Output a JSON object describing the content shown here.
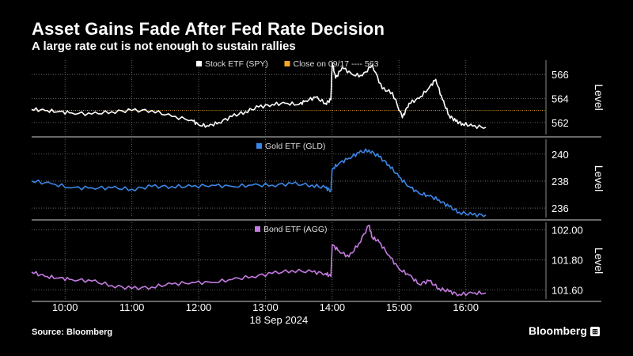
{
  "header": {
    "title": "Asset Gains Fade After Fed Rate Decision",
    "subtitle": "A large rate cut is not enough to sustain rallies"
  },
  "footer": {
    "source": "Source: Bloomberg",
    "brand": "Bloomberg",
    "brand_icon": "terminal-icon"
  },
  "colors": {
    "spy": "#ffffff",
    "close_line": "#f5a623",
    "gld": "#3a86e8",
    "agg": "#c47ae0",
    "grid": "#7a7a7a"
  },
  "chart_data": [
    {
      "type": "line",
      "panel": "spy",
      "legend": [
        "Stock ETF (SPY)",
        "Close on 09/17 ---- 563"
      ],
      "ylabel": "Level",
      "ylim": [
        561,
        567.2
      ],
      "yticks": [
        "566",
        "564",
        "562"
      ],
      "ytick_values": [
        566,
        564,
        562
      ],
      "reference_line": 563,
      "series": [
        {
          "name": "Stock ETF (SPY)",
          "x": [
            9.5,
            9.7,
            9.9,
            10.1,
            10.4,
            10.7,
            11.0,
            11.3,
            11.6,
            11.9,
            12.0,
            12.15,
            12.3,
            12.5,
            12.7,
            12.9,
            13.1,
            13.3,
            13.5,
            13.6,
            13.75,
            13.9,
            13.98,
            14.0,
            14.05,
            14.15,
            14.3,
            14.45,
            14.6,
            14.75,
            14.9,
            15.05,
            15.15,
            15.3,
            15.45,
            15.55,
            15.65,
            15.75,
            15.85,
            15.95,
            16.1,
            16.3
          ],
          "values": [
            563.1,
            563.0,
            562.9,
            562.8,
            562.7,
            562.9,
            563.0,
            563.0,
            562.5,
            562.2,
            561.8,
            561.7,
            562.0,
            562.5,
            562.9,
            563.3,
            563.5,
            563.6,
            563.5,
            563.8,
            564.1,
            563.6,
            563.9,
            567.0,
            565.7,
            566.6,
            566.0,
            565.9,
            566.8,
            564.8,
            564.5,
            562.4,
            563.6,
            564.0,
            564.9,
            565.6,
            563.9,
            562.6,
            562.1,
            561.9,
            561.7,
            561.6
          ]
        }
      ]
    },
    {
      "type": "line",
      "panel": "gld",
      "legend": [
        "Gold ETF (GLD)"
      ],
      "ylabel": "Level",
      "ylim": [
        235.3,
        241.1
      ],
      "yticks": [
        "240",
        "238",
        "236"
      ],
      "ytick_values": [
        240,
        238,
        236
      ],
      "series": [
        {
          "name": "Gold ETF (GLD)",
          "x": [
            9.5,
            9.8,
            10.1,
            10.4,
            10.7,
            11.0,
            11.3,
            11.6,
            11.9,
            12.2,
            12.5,
            12.8,
            13.1,
            13.4,
            13.7,
            13.9,
            13.98,
            14.0,
            14.1,
            14.25,
            14.4,
            14.55,
            14.7,
            14.85,
            15.0,
            15.15,
            15.3,
            15.45,
            15.6,
            15.75,
            15.9,
            16.1,
            16.3
          ],
          "values": [
            238.0,
            237.8,
            237.5,
            237.5,
            237.5,
            237.4,
            237.6,
            237.6,
            237.6,
            237.7,
            237.6,
            237.7,
            237.7,
            237.8,
            237.7,
            237.5,
            237.3,
            238.9,
            239.3,
            239.7,
            240.1,
            240.3,
            239.8,
            239.2,
            238.3,
            237.6,
            237.1,
            236.9,
            236.6,
            236.1,
            235.7,
            235.5,
            235.5
          ]
        }
      ]
    },
    {
      "type": "line",
      "panel": "agg",
      "legend": [
        "Bond ETF (AGG)"
      ],
      "ylabel": "Level",
      "ylim": [
        101.54,
        102.05
      ],
      "yticks": [
        "102.00",
        "101.80",
        "101.60"
      ],
      "ytick_values": [
        102.0,
        101.8,
        101.6
      ],
      "series": [
        {
          "name": "Bond ETF (AGG)",
          "x": [
            9.5,
            9.7,
            9.9,
            10.1,
            10.4,
            10.7,
            11.0,
            11.3,
            11.6,
            11.9,
            12.2,
            12.5,
            12.8,
            13.1,
            13.4,
            13.7,
            13.9,
            13.98,
            14.0,
            14.1,
            14.25,
            14.4,
            14.55,
            14.6,
            14.7,
            14.85,
            15.0,
            15.15,
            15.3,
            15.45,
            15.6,
            15.75,
            15.9,
            16.1,
            16.3
          ],
          "values": [
            101.72,
            101.69,
            101.68,
            101.67,
            101.66,
            101.63,
            101.61,
            101.62,
            101.64,
            101.65,
            101.65,
            101.67,
            101.69,
            101.71,
            101.73,
            101.72,
            101.71,
            101.69,
            101.9,
            101.86,
            101.82,
            101.91,
            102.03,
            101.95,
            101.92,
            101.83,
            101.74,
            101.7,
            101.64,
            101.66,
            101.61,
            101.59,
            101.57,
            101.58,
            101.58
          ]
        }
      ]
    },
    {
      "type": "axis",
      "panel": "time",
      "xlim": [
        9.5,
        17.2
      ],
      "xticks": [
        "10:00",
        "11:00",
        "12:00",
        "13:00",
        "14:00",
        "15:00",
        "16:00"
      ],
      "xtick_values": [
        10,
        11,
        12,
        13,
        14,
        15,
        16
      ],
      "xlabel": "18 Sep 2024"
    }
  ]
}
